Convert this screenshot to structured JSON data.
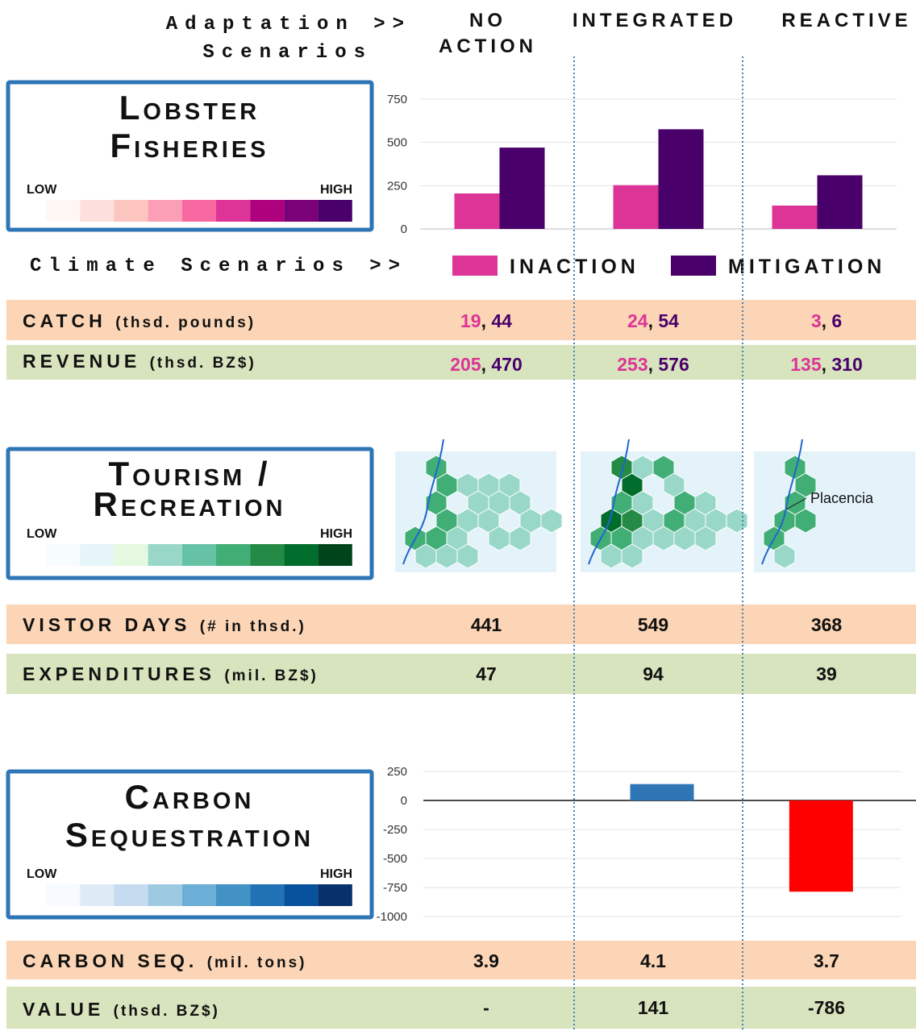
{
  "header": {
    "adaptation": [
      "Adaptation >>",
      "Scenarios"
    ],
    "climate": "Climate Scenarios >>"
  },
  "legend_scale": {
    "low": "LOW",
    "high": "HIGH"
  },
  "sections": [
    {
      "title": [
        "Lobster",
        "Fisheries"
      ],
      "colors": [
        "#fff7f3",
        "#fde0dd",
        "#fcc5c0",
        "#fa9fb5",
        "#f768a1",
        "#dd3497",
        "#ae017e",
        "#7a0177",
        "#49006a"
      ]
    },
    {
      "title": [
        "Tourism /",
        "Recreation"
      ],
      "colors": [
        "#f7fcfd",
        "#e5f5f9",
        "#e5f9e0",
        "#99d8c9",
        "#66c2a4",
        "#41ae76",
        "#238b45",
        "#006d2c",
        "#00441b"
      ]
    },
    {
      "title": [
        "Carbon",
        "Sequestration"
      ],
      "colors": [
        "#f7fbff",
        "#deebf7",
        "#c6dbef",
        "#9ecae1",
        "#6baed6",
        "#4292c6",
        "#2171b5",
        "#08519c",
        "#08306b"
      ]
    }
  ],
  "chart_data": [
    {
      "type": "bar",
      "categories": [
        "NO ACTION",
        "INTEGRATED",
        "REACTIVE"
      ],
      "series": [
        {
          "name": "INACTION",
          "color": "#dd3497",
          "values": [
            205,
            253,
            135
          ]
        },
        {
          "name": "MITIGATION",
          "color": "#49006a",
          "values": [
            470,
            576,
            310
          ]
        }
      ],
      "ylim": [
        0,
        750
      ],
      "yticks": [
        0,
        250,
        500,
        750
      ],
      "grid": true
    },
    {
      "type": "bar",
      "values": [
        null,
        141,
        -786
      ],
      "value_labels": [
        "-",
        "141",
        "-786"
      ],
      "colors": [
        "#2e75b6",
        "#2e75b6",
        "#ff0000"
      ],
      "ylim": [
        -1000,
        250
      ],
      "yticks": [
        -1000,
        -750,
        -500,
        -250,
        0,
        250
      ],
      "grid": true
    }
  ],
  "rows": {
    "catch": {
      "label": "CATCH",
      "unit": "(thsd. pounds)",
      "values": [
        [
          19,
          44
        ],
        [
          24,
          54
        ],
        [
          3,
          6
        ]
      ],
      "separator": ","
    },
    "revenue": {
      "label": "REVENUE",
      "unit": "(thsd. BZ$)"
    },
    "visitor_days": {
      "label": "VISTOR DAYS",
      "unit": "(# in thsd.)",
      "values": [
        441,
        549,
        368
      ]
    },
    "expenditures": {
      "label": "EXPENDITURES",
      "unit": "(mil. BZ$)",
      "values": [
        47,
        94,
        39
      ]
    },
    "carbon_seq": {
      "label": "CARBON SEQ.",
      "unit": "(mil. tons)",
      "values": [
        3.9,
        4.1,
        3.7
      ]
    },
    "value": {
      "label": "VALUE",
      "unit": "(thsd. BZ$)"
    }
  },
  "map_label": "Placencia"
}
